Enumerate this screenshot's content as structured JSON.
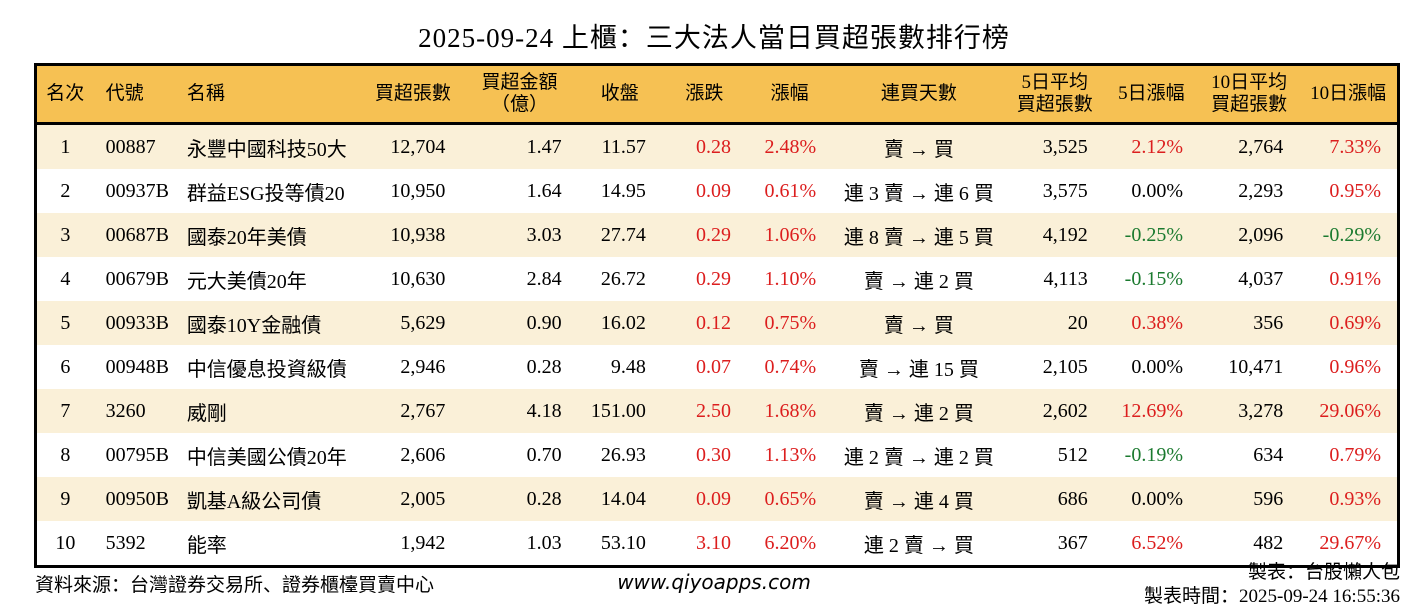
{
  "title": "2025-09-24 上櫃：三大法人當日買超張數排行榜",
  "colors": {
    "header_bg": "#F6C153",
    "row_stripe": "#FAF0D8",
    "up_red": "#DC1E1E",
    "down_green": "#1B7A2F",
    "border": "#000000"
  },
  "table": {
    "columns": [
      {
        "key": "rank",
        "label": "名次"
      },
      {
        "key": "code",
        "label": "代號"
      },
      {
        "key": "name",
        "label": "名稱"
      },
      {
        "key": "net_buy",
        "label": "買超張數"
      },
      {
        "key": "net_amount",
        "label": "買超金額\n（億）"
      },
      {
        "key": "close",
        "label": "收盤"
      },
      {
        "key": "change",
        "label": "漲跌"
      },
      {
        "key": "change_pct",
        "label": "漲幅"
      },
      {
        "key": "streak",
        "label": "連買天數"
      },
      {
        "key": "avg5",
        "label": "5日平均\n買超張數"
      },
      {
        "key": "pct5",
        "label": "5日漲幅"
      },
      {
        "key": "avg10",
        "label": "10日平均\n買超張數"
      },
      {
        "key": "pct10",
        "label": "10日漲幅"
      }
    ],
    "rows": [
      {
        "rank": "1",
        "code": "00887",
        "name": "永豐中國科技50大",
        "net_buy": "12,704",
        "net_amount": "1.47",
        "close": "11.57",
        "change": "0.28",
        "change_color": "red",
        "change_pct": "2.48%",
        "change_pct_color": "red",
        "streak": "賣 → 買",
        "avg5": "3,525",
        "pct5": "2.12%",
        "pct5_color": "red",
        "avg10": "2,764",
        "pct10": "7.33%",
        "pct10_color": "red"
      },
      {
        "rank": "2",
        "code": "00937B",
        "name": "群益ESG投等債20",
        "net_buy": "10,950",
        "net_amount": "1.64",
        "close": "14.95",
        "change": "0.09",
        "change_color": "red",
        "change_pct": "0.61%",
        "change_pct_color": "red",
        "streak": "連 3 賣 → 連 6 買",
        "avg5": "3,575",
        "pct5": "0.00%",
        "pct5_color": "black",
        "avg10": "2,293",
        "pct10": "0.95%",
        "pct10_color": "red"
      },
      {
        "rank": "3",
        "code": "00687B",
        "name": "國泰20年美債",
        "net_buy": "10,938",
        "net_amount": "3.03",
        "close": "27.74",
        "change": "0.29",
        "change_color": "red",
        "change_pct": "1.06%",
        "change_pct_color": "red",
        "streak": "連 8 賣 → 連 5 買",
        "avg5": "4,192",
        "pct5": "-0.25%",
        "pct5_color": "green",
        "avg10": "2,096",
        "pct10": "-0.29%",
        "pct10_color": "green"
      },
      {
        "rank": "4",
        "code": "00679B",
        "name": "元大美債20年",
        "net_buy": "10,630",
        "net_amount": "2.84",
        "close": "26.72",
        "change": "0.29",
        "change_color": "red",
        "change_pct": "1.10%",
        "change_pct_color": "red",
        "streak": "賣 → 連 2 買",
        "avg5": "4,113",
        "pct5": "-0.15%",
        "pct5_color": "green",
        "avg10": "4,037",
        "pct10": "0.91%",
        "pct10_color": "red"
      },
      {
        "rank": "5",
        "code": "00933B",
        "name": "國泰10Y金融債",
        "net_buy": "5,629",
        "net_amount": "0.90",
        "close": "16.02",
        "change": "0.12",
        "change_color": "red",
        "change_pct": "0.75%",
        "change_pct_color": "red",
        "streak": "賣 → 買",
        "avg5": "20",
        "pct5": "0.38%",
        "pct5_color": "red",
        "avg10": "356",
        "pct10": "0.69%",
        "pct10_color": "red"
      },
      {
        "rank": "6",
        "code": "00948B",
        "name": "中信優息投資級債",
        "net_buy": "2,946",
        "net_amount": "0.28",
        "close": "9.48",
        "change": "0.07",
        "change_color": "red",
        "change_pct": "0.74%",
        "change_pct_color": "red",
        "streak": "賣 → 連 15 買",
        "avg5": "2,105",
        "pct5": "0.00%",
        "pct5_color": "black",
        "avg10": "10,471",
        "pct10": "0.96%",
        "pct10_color": "red"
      },
      {
        "rank": "7",
        "code": "3260",
        "name": "威剛",
        "net_buy": "2,767",
        "net_amount": "4.18",
        "close": "151.00",
        "change": "2.50",
        "change_color": "red",
        "change_pct": "1.68%",
        "change_pct_color": "red",
        "streak": "賣 → 連 2 買",
        "avg5": "2,602",
        "pct5": "12.69%",
        "pct5_color": "red",
        "avg10": "3,278",
        "pct10": "29.06%",
        "pct10_color": "red"
      },
      {
        "rank": "8",
        "code": "00795B",
        "name": "中信美國公債20年",
        "net_buy": "2,606",
        "net_amount": "0.70",
        "close": "26.93",
        "change": "0.30",
        "change_color": "red",
        "change_pct": "1.13%",
        "change_pct_color": "red",
        "streak": "連 2 賣 → 連 2 買",
        "avg5": "512",
        "pct5": "-0.19%",
        "pct5_color": "green",
        "avg10": "634",
        "pct10": "0.79%",
        "pct10_color": "red"
      },
      {
        "rank": "9",
        "code": "00950B",
        "name": "凱基A級公司債",
        "net_buy": "2,005",
        "net_amount": "0.28",
        "close": "14.04",
        "change": "0.09",
        "change_color": "red",
        "change_pct": "0.65%",
        "change_pct_color": "red",
        "streak": "賣 → 連 4 買",
        "avg5": "686",
        "pct5": "0.00%",
        "pct5_color": "black",
        "avg10": "596",
        "pct10": "0.93%",
        "pct10_color": "red"
      },
      {
        "rank": "10",
        "code": "5392",
        "name": "能率",
        "net_buy": "1,942",
        "net_amount": "1.03",
        "close": "53.10",
        "change": "3.10",
        "change_color": "red",
        "change_pct": "6.20%",
        "change_pct_color": "red",
        "streak": "連 2 賣 → 買",
        "avg5": "367",
        "pct5": "6.52%",
        "pct5_color": "red",
        "avg10": "482",
        "pct10": "29.67%",
        "pct10_color": "red"
      }
    ]
  },
  "footer": {
    "source": "資料來源：台灣證券交易所、證券櫃檯買賣中心",
    "website": "www.qiyoapps.com",
    "made_by": "製表：台股懶人包",
    "made_time": "製表時間：2025-09-24 16:55:36"
  }
}
